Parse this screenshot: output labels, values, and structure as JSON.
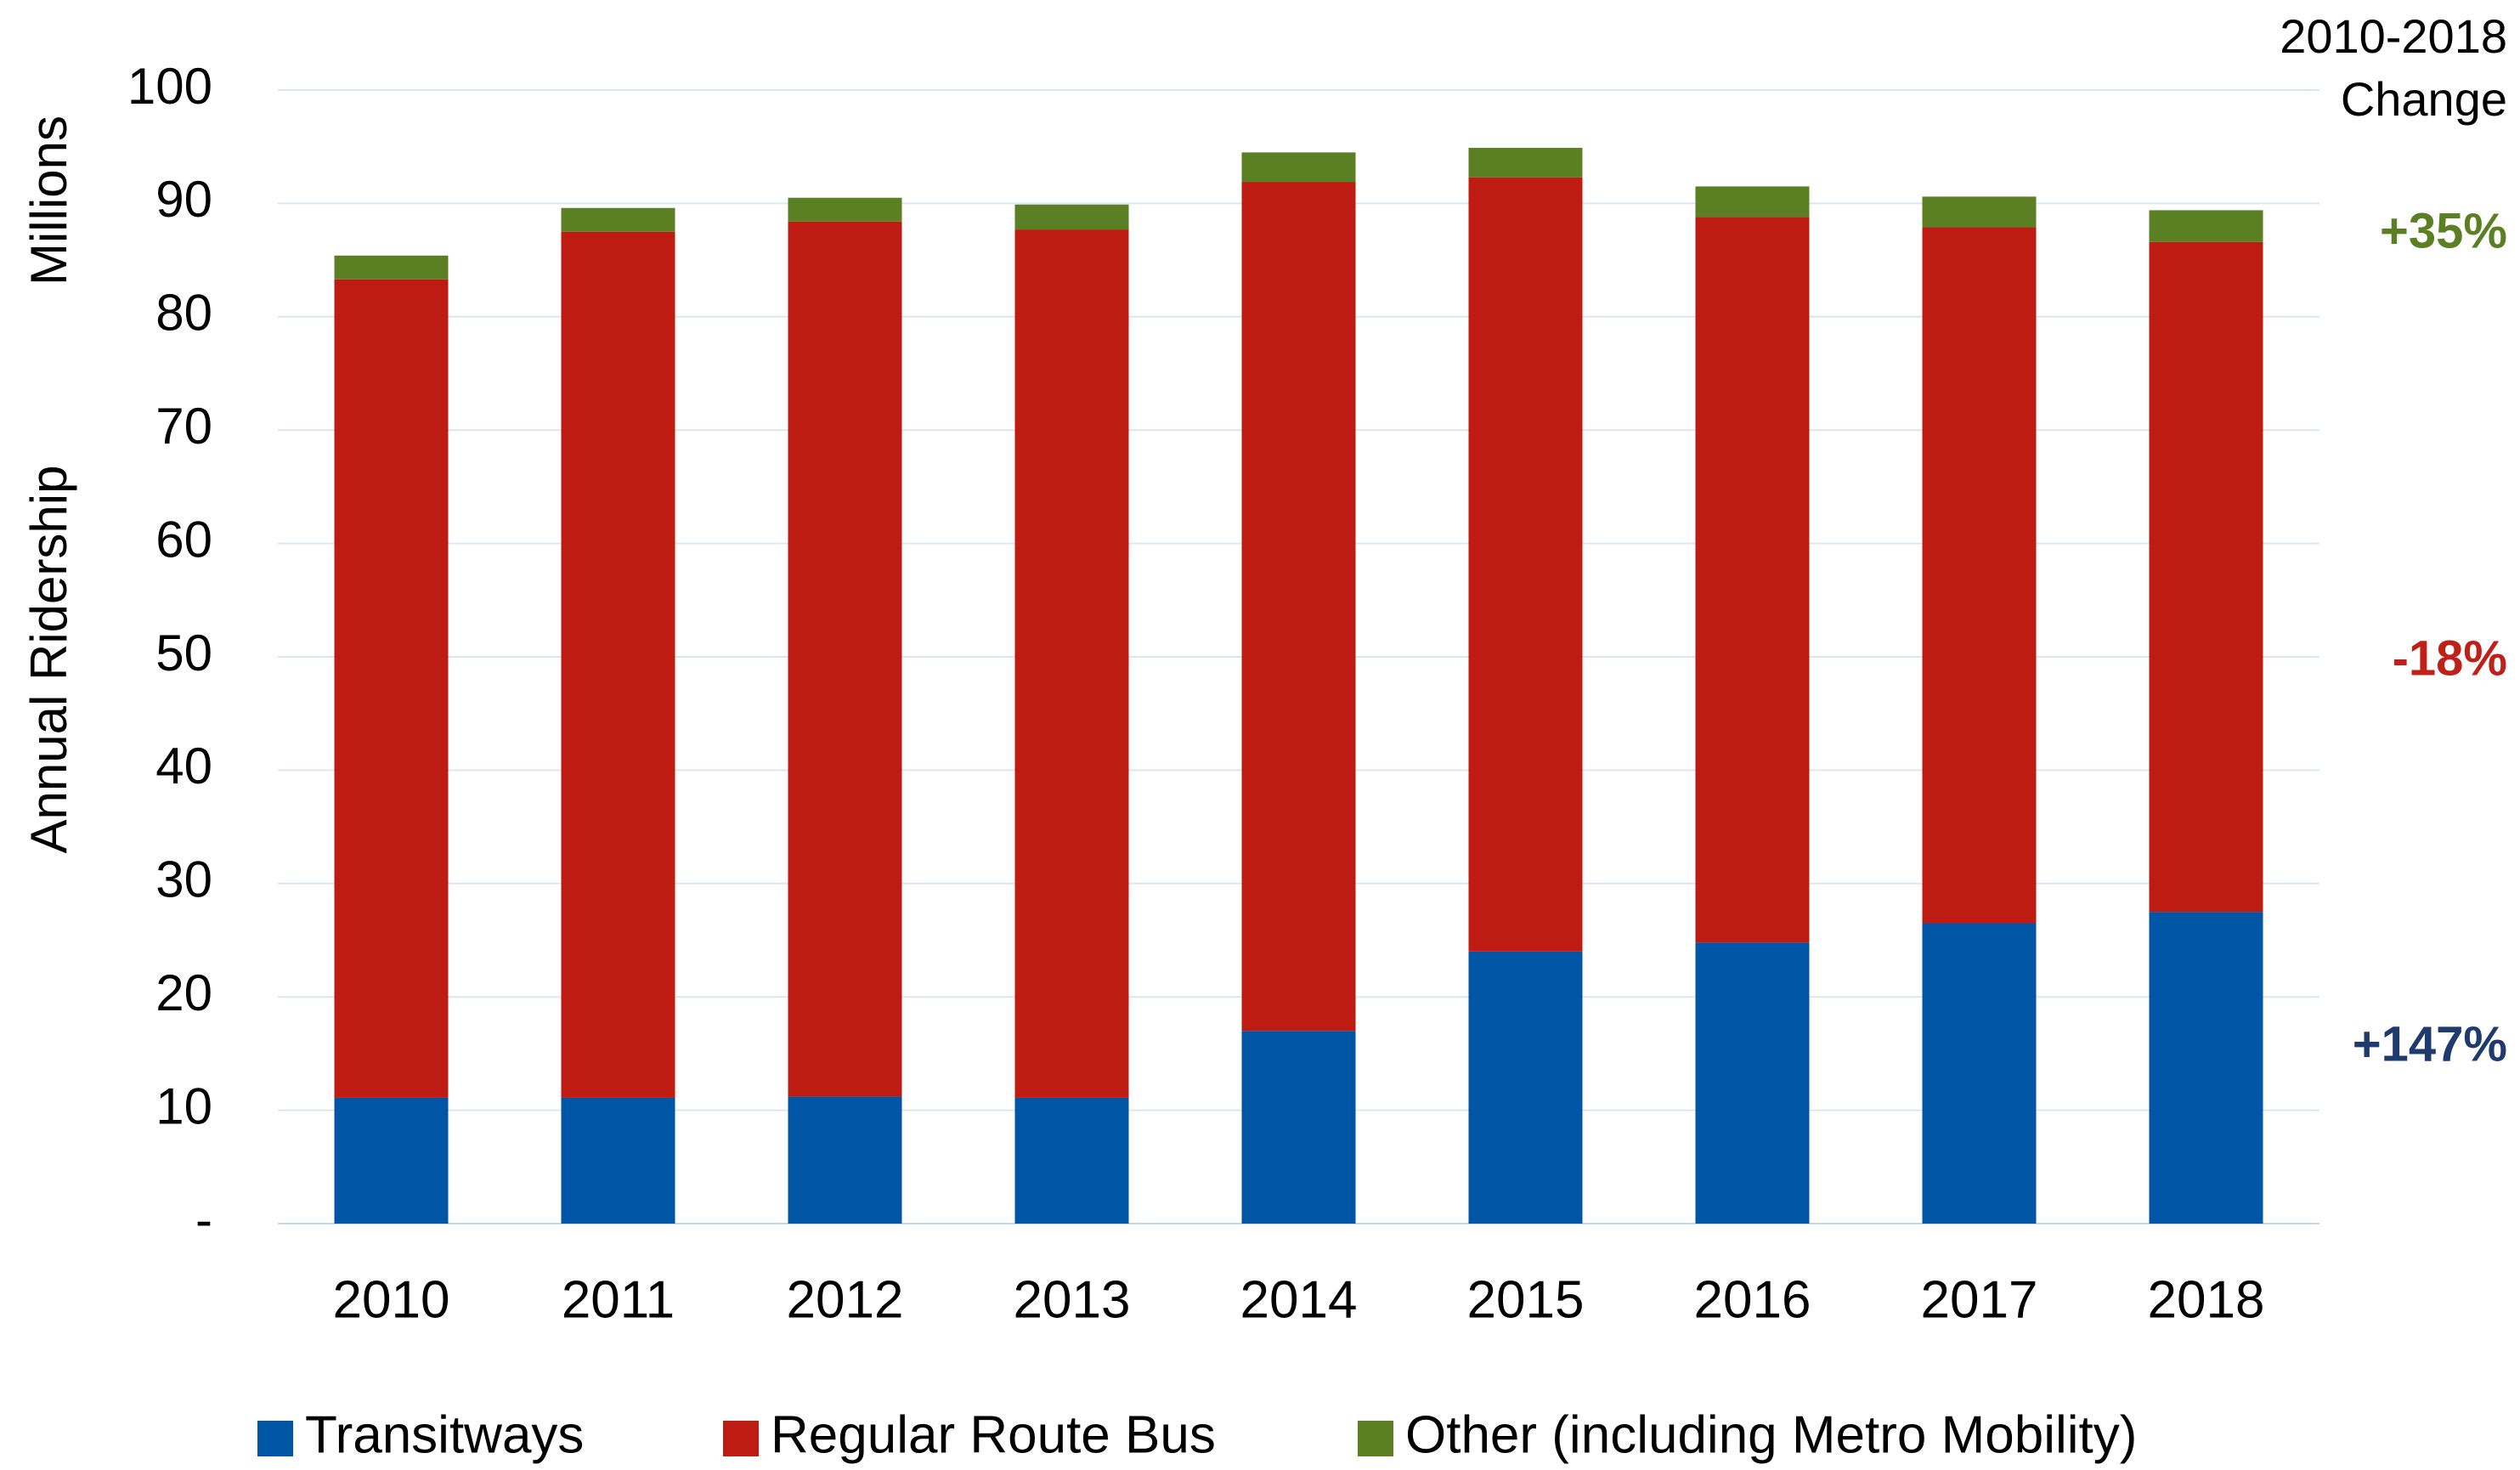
{
  "chart_data": {
    "type": "stacked_bar",
    "y_label": "Annual Ridership",
    "y_unit_label": "Millions",
    "categories": [
      "2010",
      "2011",
      "2012",
      "2013",
      "2014",
      "2015",
      "2016",
      "2017",
      "2018"
    ],
    "series": [
      {
        "name": "Transitways",
        "color": "#0055a4",
        "values": [
          11.1,
          11.1,
          11.2,
          11.1,
          17.0,
          24.0,
          24.8,
          26.5,
          27.5
        ]
      },
      {
        "name": "Regular Route Bus",
        "color": "#be1b12",
        "values": [
          72.2,
          76.4,
          77.2,
          76.6,
          74.9,
          68.3,
          64.0,
          61.4,
          59.1
        ]
      },
      {
        "name": "Other (including Metro Mobility)",
        "color": "#5b7f23",
        "values": [
          2.1,
          2.1,
          2.1,
          2.2,
          2.6,
          2.6,
          2.7,
          2.7,
          2.8
        ]
      }
    ],
    "ylim": [
      0,
      100
    ],
    "yticks": [
      {
        "value": 0,
        "label": "-"
      },
      10,
      20,
      30,
      40,
      50,
      60,
      70,
      80,
      90,
      100
    ],
    "grid": true,
    "legend": "bottom",
    "annotations": {
      "header": [
        "2010-2018",
        "Change"
      ],
      "changes": [
        {
          "text": "+35%",
          "color": "#5b7f23"
        },
        {
          "text": "-18%",
          "color": "#c0201a"
        },
        {
          "text": "+147%",
          "color": "#1f3b6e"
        }
      ]
    }
  }
}
